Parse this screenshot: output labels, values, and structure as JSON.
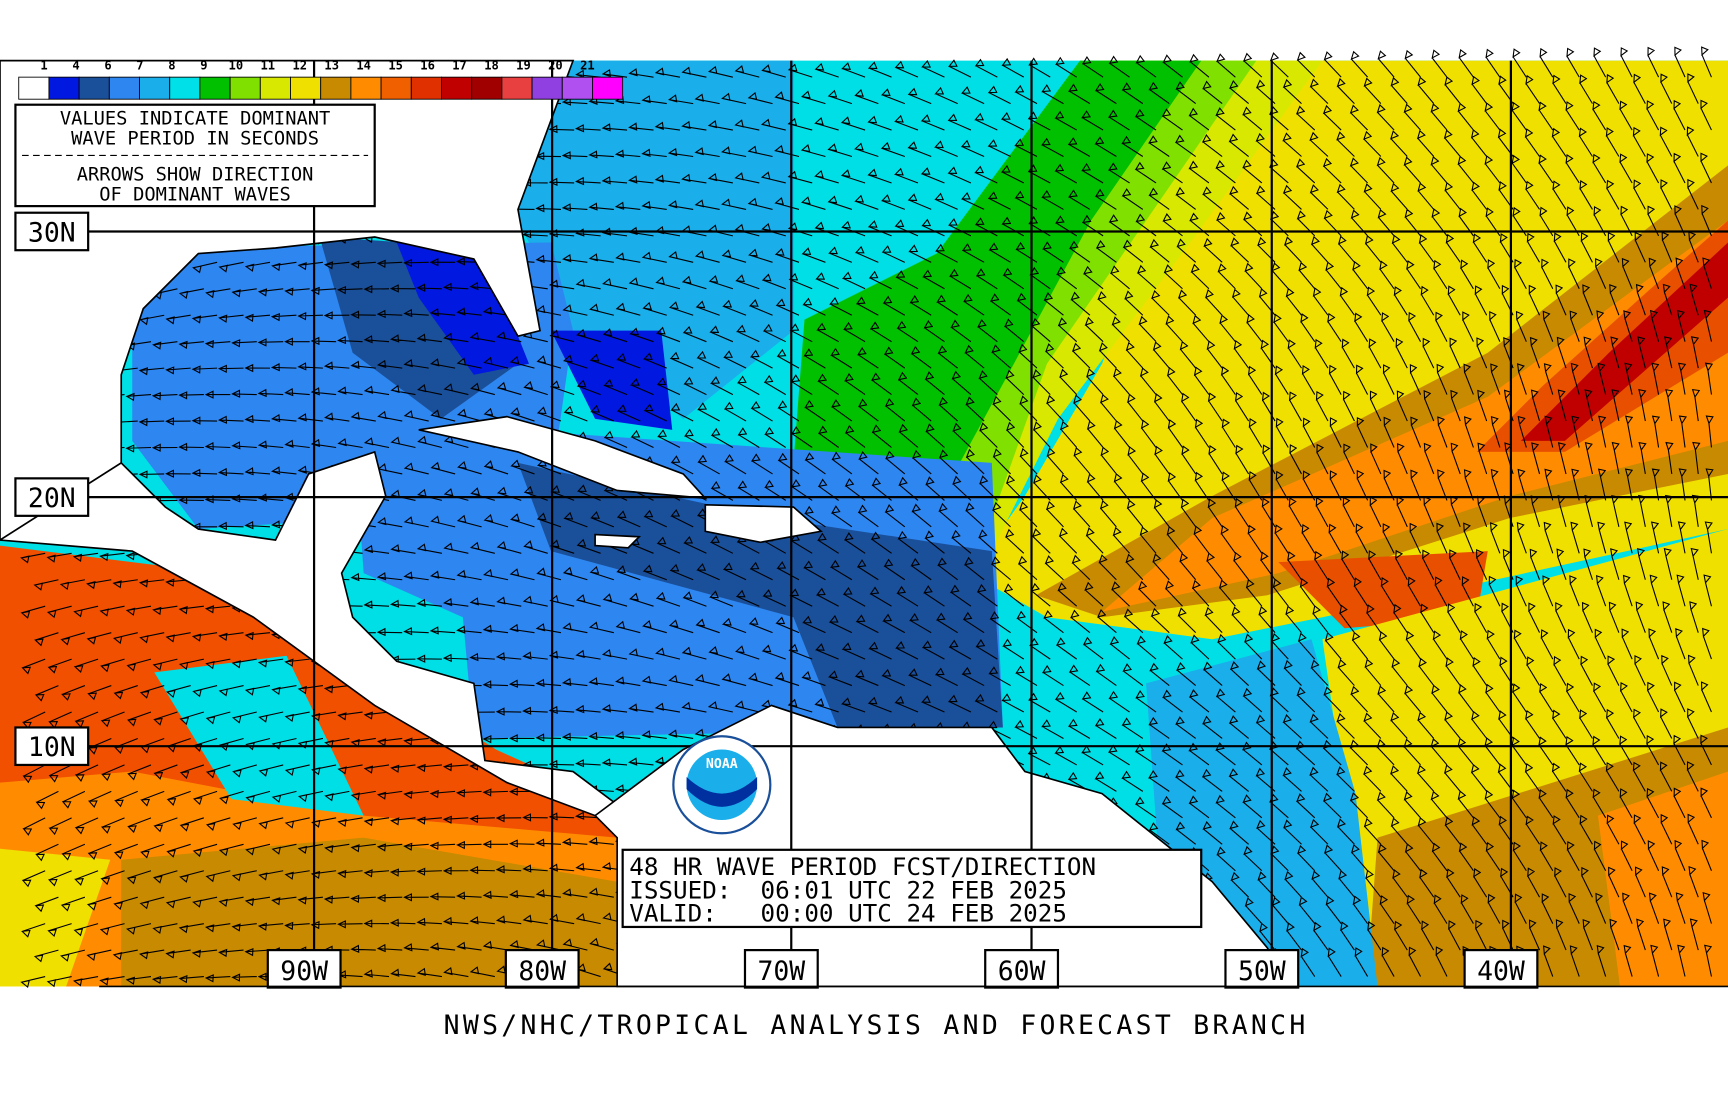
{
  "legend": {
    "labels": [
      "1",
      "4",
      "6",
      "7",
      "8",
      "9",
      "10",
      "11",
      "12",
      "13",
      "14",
      "15",
      "16",
      "17",
      "18",
      "19",
      "20",
      "21"
    ],
    "colors": [
      "#ffffff",
      "#0018e0",
      "#1a4f9a",
      "#2e86f0",
      "#1aaeea",
      "#00e0e8",
      "#00c000",
      "#80e000",
      "#d8e800",
      "#f0e000",
      "#c88a00",
      "#ff8c00",
      "#f06000",
      "#e03000",
      "#c00000",
      "#a00000",
      "#e84040",
      "#9040e0",
      "#b050f0",
      "#ff00ff"
    ]
  },
  "note": {
    "line1": "VALUES INDICATE DOMINANT",
    "line2": "WAVE PERIOD IN SECONDS",
    "line3": "ARROWS SHOW DIRECTION",
    "line4": "OF DOMINANT WAVES"
  },
  "latitude_labels": [
    "30N",
    "20N",
    "10N"
  ],
  "longitude_labels": [
    "90W",
    "80W",
    "70W",
    "60W",
    "50W",
    "40W"
  ],
  "info": {
    "title": "48 HR WAVE PERIOD FCST/DIRECTION",
    "issued": "ISSUED:  06:01 UTC 22 FEB 2025",
    "valid": "VALID:   00:00 UTC 24 FEB 2025"
  },
  "logo": {
    "text": "NOAA"
  },
  "footer": "NWS/NHC/TROPICAL ANALYSIS AND FORECAST BRANCH"
}
